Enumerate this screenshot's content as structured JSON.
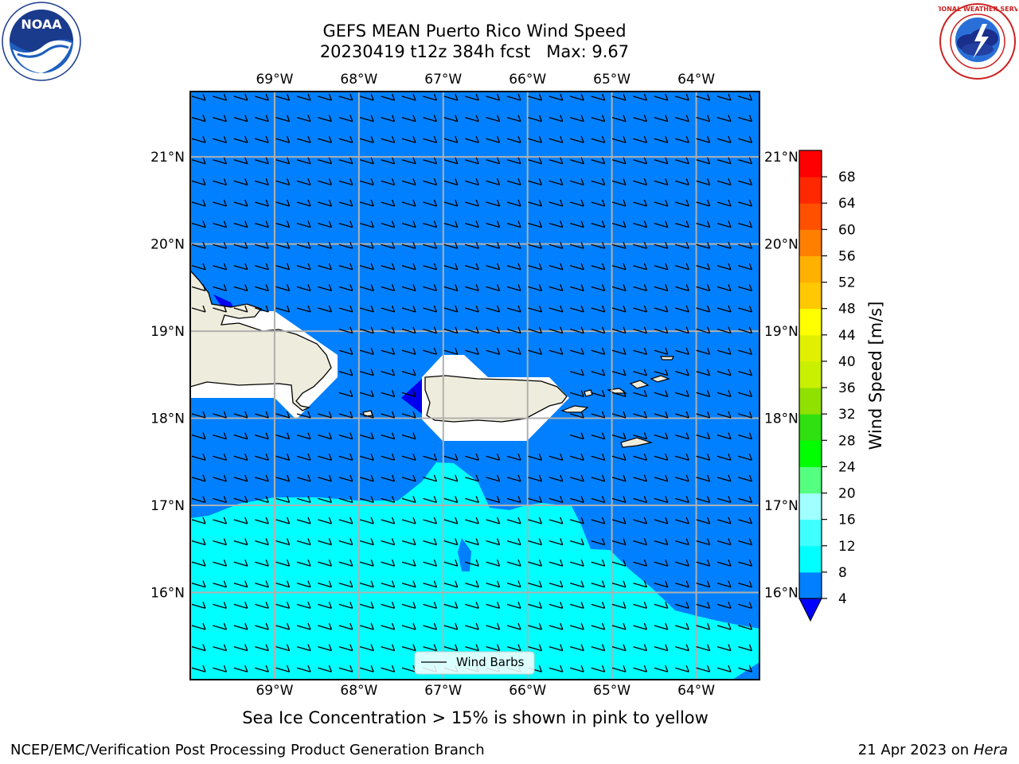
{
  "title": {
    "line1": "GEFS MEAN Puerto Rico Wind Speed",
    "line2": "20230419 t12z 384h fcst   Max: 9.67"
  },
  "logos": {
    "left": {
      "icon": "noaa-logo",
      "text": "NOAA"
    },
    "right": {
      "icon": "nws-logo",
      "text": "NATIONAL WEATHER SERVICE"
    }
  },
  "map": {
    "lon_labels": [
      "69°W",
      "68°W",
      "67°W",
      "66°W",
      "65°W",
      "64°W"
    ],
    "lat_labels": [
      "21°N",
      "20°N",
      "19°N",
      "18°N",
      "17°N",
      "16°N"
    ],
    "lon_values": [
      -69,
      -68,
      -67,
      -66,
      -65,
      -64
    ],
    "lat_values": [
      21,
      20,
      19,
      18,
      17,
      16
    ],
    "extent": {
      "lon_min": -70.0,
      "lon_max": -63.25,
      "lat_min": 15.0,
      "lat_max": 21.75
    },
    "legend_label": "Wind Barbs",
    "colors": {
      "ocean_4_8": "#0080ff",
      "ocean_8_12": "#00ffff",
      "ocean_12_16": "#ccffff",
      "land": "#eeecdc",
      "below_4": "#0000ee"
    }
  },
  "colorbar": {
    "label": "Wind Speed [m/s]",
    "ticks": [
      "4",
      "8",
      "12",
      "16",
      "20",
      "24",
      "28",
      "32",
      "36",
      "40",
      "44",
      "48",
      "52",
      "56",
      "60",
      "64",
      "68"
    ],
    "colors": [
      "#0080ff",
      "#00ffff",
      "#40ffff",
      "#a0ffff",
      "#55ff80",
      "#00ff00",
      "#30e010",
      "#90e000",
      "#c8f000",
      "#e0f000",
      "#ffff00",
      "#ffc800",
      "#ffb000",
      "#ff8000",
      "#ff5000",
      "#ff2800",
      "#ff0000"
    ],
    "extend_color": "#0000ff"
  },
  "caption": "Sea Ice Concentration > 15% is shown in pink to yellow",
  "footer": {
    "left": "NCEP/EMC/Verification Post Processing Product Generation Branch",
    "right_prefix": "21 Apr 2023 on ",
    "right_host": "Hera"
  }
}
